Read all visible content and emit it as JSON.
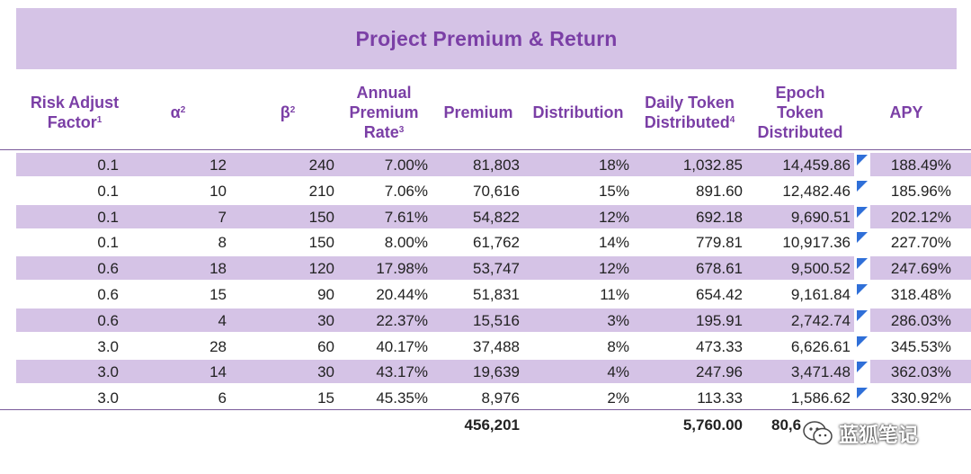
{
  "title": "Project Premium & Return",
  "headers": [
    {
      "lines": [
        "Risk Adjust",
        "Factor"
      ],
      "sup": "1"
    },
    {
      "lines": [
        "α"
      ],
      "sup": "2"
    },
    {
      "lines": [
        "β"
      ],
      "sup": "2"
    },
    {
      "lines": [
        "Annual",
        "Premium",
        "Rate"
      ],
      "sup": "3"
    },
    {
      "lines": [
        "Premium"
      ],
      "sup": ""
    },
    {
      "lines": [
        "Distribution"
      ],
      "sup": ""
    },
    {
      "lines": [
        "Daily Token",
        "Distributed"
      ],
      "sup": "4"
    },
    {
      "lines": [
        "Epoch",
        "Token",
        "Distributed"
      ],
      "sup": ""
    },
    {
      "lines": [
        "APY"
      ],
      "sup": ""
    }
  ],
  "rows": [
    [
      "0.1",
      "12",
      "240",
      "7.00%",
      "81,803",
      "18%",
      "1,032.85",
      "14,459.86",
      "188.49%"
    ],
    [
      "0.1",
      "10",
      "210",
      "7.06%",
      "70,616",
      "15%",
      "891.60",
      "12,482.46",
      "185.96%"
    ],
    [
      "0.1",
      "7",
      "150",
      "7.61%",
      "54,822",
      "12%",
      "692.18",
      "9,690.51",
      "202.12%"
    ],
    [
      "0.1",
      "8",
      "150",
      "8.00%",
      "61,762",
      "14%",
      "779.81",
      "10,917.36",
      "227.70%"
    ],
    [
      "0.6",
      "18",
      "120",
      "17.98%",
      "53,747",
      "12%",
      "678.61",
      "9,500.52",
      "247.69%"
    ],
    [
      "0.6",
      "15",
      "90",
      "20.44%",
      "51,831",
      "11%",
      "654.42",
      "9,161.84",
      "318.48%"
    ],
    [
      "0.6",
      "4",
      "30",
      "22.37%",
      "15,516",
      "3%",
      "195.91",
      "2,742.74",
      "286.03%"
    ],
    [
      "3.0",
      "28",
      "60",
      "40.17%",
      "37,488",
      "8%",
      "473.33",
      "6,626.61",
      "345.53%"
    ],
    [
      "3.0",
      "14",
      "30",
      "43.17%",
      "19,639",
      "4%",
      "247.96",
      "3,471.48",
      "362.03%"
    ],
    [
      "3.0",
      "6",
      "15",
      "45.35%",
      "8,976",
      "2%",
      "113.33",
      "1,586.62",
      "330.92%"
    ]
  ],
  "totals": {
    "premium": "456,201",
    "daily_token": "5,760.00",
    "epoch_token": "80,6"
  },
  "watermark": "蓝狐笔记",
  "colors": {
    "header_purple": "#7b3fa6",
    "band_lavender": "#d5c3e6",
    "note_flag_blue": "#2f6fd8"
  }
}
